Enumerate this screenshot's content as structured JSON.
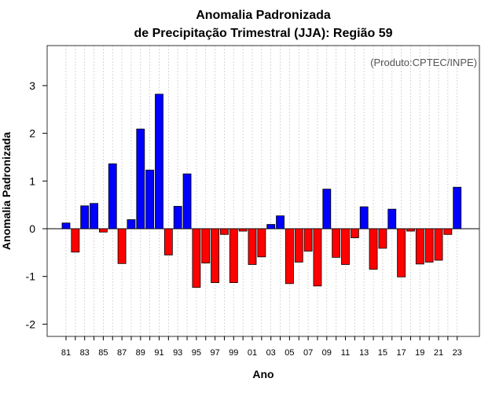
{
  "chart_data": {
    "type": "bar",
    "title": [
      "Anomalia Padronizada",
      "de Precipitação Trimestral (JJA): Região 59"
    ],
    "xlabel": "Ano",
    "ylabel": "Anomalia Padronizada",
    "credit": "(Produto:CPTEC/INPE)",
    "ylim": [
      -2.2,
      3.85
    ],
    "yticks": [
      -2,
      -1,
      0,
      1,
      2,
      3
    ],
    "x_ticks": [
      "81",
      "83",
      "85",
      "87",
      "89",
      "91",
      "93",
      "95",
      "97",
      "99",
      "01",
      "03",
      "05",
      "07",
      "09",
      "11",
      "13",
      "15",
      "17",
      "19",
      "21",
      "23"
    ],
    "years": [
      1981,
      1982,
      1983,
      1984,
      1985,
      1986,
      1987,
      1988,
      1989,
      1990,
      1991,
      1992,
      1993,
      1994,
      1995,
      1996,
      1997,
      1998,
      1999,
      2000,
      2001,
      2002,
      2003,
      2004,
      2005,
      2006,
      2007,
      2008,
      2009,
      2010,
      2011,
      2012,
      2013,
      2014,
      2015,
      2016,
      2017,
      2018,
      2019,
      2020,
      2021,
      2022,
      2023
    ],
    "values": [
      0.12,
      -0.49,
      0.48,
      0.53,
      -0.07,
      1.36,
      -0.73,
      0.19,
      2.09,
      1.23,
      2.82,
      -0.55,
      0.47,
      1.15,
      -1.23,
      -0.72,
      -1.13,
      -0.12,
      -1.13,
      -0.05,
      -0.75,
      -0.59,
      0.09,
      0.27,
      -1.15,
      -0.7,
      -0.47,
      -1.2,
      0.83,
      -0.6,
      -0.75,
      -0.19,
      0.46,
      -0.85,
      -0.41,
      0.41,
      -1.01,
      -0.05,
      -0.74,
      -0.7,
      -0.66,
      -0.12,
      0.87
    ],
    "colors": {
      "positive": "#0000ff",
      "negative": "#ff0000",
      "bar_edge": "#000000",
      "grid": "#cccccc",
      "zero_line": "#000000"
    }
  }
}
